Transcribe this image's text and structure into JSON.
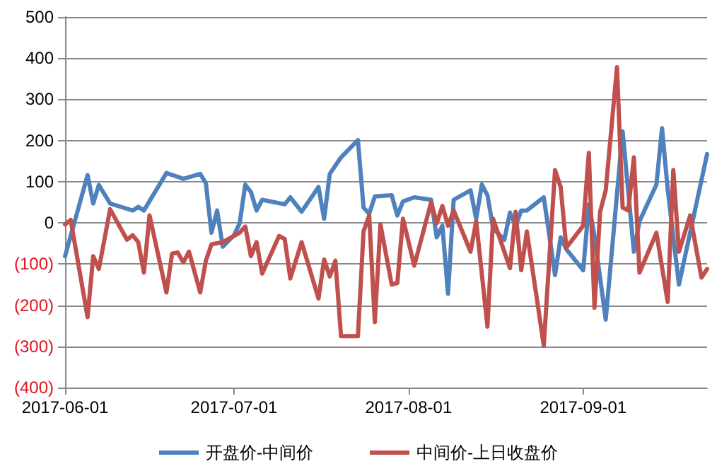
{
  "chart_data": {
    "type": "line",
    "xlim": [
      "2017-06-01",
      "2017-09-23"
    ],
    "xticks": [
      "2017-06-01",
      "2017-07-01",
      "2017-08-01",
      "2017-09-01"
    ],
    "ylim": [
      -400,
      500
    ],
    "yticks": [
      {
        "value": -400,
        "label": "(400)"
      },
      {
        "value": -300,
        "label": "(300)"
      },
      {
        "value": -200,
        "label": "(200)"
      },
      {
        "value": -100,
        "label": "(100)"
      },
      0,
      100,
      200,
      300,
      400,
      500
    ],
    "grid": "y",
    "legend": "bottom",
    "line_style": "solid",
    "marker": "none",
    "series": [
      {
        "name": "开盘价-中间价",
        "color": "#4f81bd",
        "x": [
          "2017-06-01",
          "2017-06-05",
          "2017-06-06",
          "2017-06-07",
          "2017-06-09",
          "2017-06-13",
          "2017-06-14",
          "2017-06-15",
          "2017-06-19",
          "2017-06-22",
          "2017-06-25",
          "2017-06-26",
          "2017-06-27",
          "2017-06-28",
          "2017-06-29",
          "2017-07-01",
          "2017-07-02",
          "2017-07-03",
          "2017-07-04",
          "2017-07-05",
          "2017-07-06",
          "2017-07-10",
          "2017-07-11",
          "2017-07-13",
          "2017-07-16",
          "2017-07-17",
          "2017-07-18",
          "2017-07-20",
          "2017-07-23",
          "2017-07-24",
          "2017-07-25",
          "2017-07-26",
          "2017-07-29",
          "2017-07-30",
          "2017-07-31",
          "2017-08-02",
          "2017-08-05",
          "2017-08-06",
          "2017-08-07",
          "2017-08-08",
          "2017-08-09",
          "2017-08-12",
          "2017-08-13",
          "2017-08-14",
          "2017-08-15",
          "2017-08-16",
          "2017-08-18",
          "2017-08-19",
          "2017-08-20",
          "2017-08-21",
          "2017-08-22",
          "2017-08-25",
          "2017-08-26",
          "2017-08-27",
          "2017-08-28",
          "2017-08-29",
          "2017-09-01",
          "2017-09-02",
          "2017-09-03",
          "2017-09-05",
          "2017-09-08",
          "2017-09-10",
          "2017-09-11",
          "2017-09-14",
          "2017-09-15",
          "2017-09-16",
          "2017-09-18",
          "2017-09-23"
        ],
        "values": [
          -81,
          116,
          47,
          92,
          47,
          30,
          39,
          30,
          121,
          107,
          119,
          96,
          -24,
          30,
          -58,
          -30,
          -1,
          93,
          75,
          30,
          56,
          45,
          62,
          27,
          87,
          10,
          119,
          159,
          201,
          37,
          22,
          64,
          67,
          18,
          52,
          62,
          56,
          -35,
          -7,
          -172,
          56,
          79,
          10,
          93,
          67,
          -13,
          -41,
          25,
          -7,
          30,
          30,
          62,
          -32,
          -127,
          -35,
          -64,
          -115,
          45,
          -32,
          -235,
          222,
          -70,
          4,
          93,
          230,
          82,
          -150,
          167
        ]
      },
      {
        "name": "中间价-上日收盘价",
        "color": "#c0504d",
        "x": [
          "2017-06-01",
          "2017-06-02",
          "2017-06-05",
          "2017-06-06",
          "2017-06-07",
          "2017-06-09",
          "2017-06-12",
          "2017-06-13",
          "2017-06-14",
          "2017-06-15",
          "2017-06-16",
          "2017-06-19",
          "2017-06-20",
          "2017-06-21",
          "2017-06-22",
          "2017-06-23",
          "2017-06-25",
          "2017-06-26",
          "2017-06-27",
          "2017-06-29",
          "2017-07-02",
          "2017-07-03",
          "2017-07-04",
          "2017-07-05",
          "2017-07-06",
          "2017-07-09",
          "2017-07-10",
          "2017-07-11",
          "2017-07-13",
          "2017-07-16",
          "2017-07-17",
          "2017-07-18",
          "2017-07-19",
          "2017-07-20",
          "2017-07-23",
          "2017-07-24",
          "2017-07-25",
          "2017-07-26",
          "2017-07-27",
          "2017-07-29",
          "2017-07-30",
          "2017-07-31",
          "2017-08-02",
          "2017-08-05",
          "2017-08-06",
          "2017-08-07",
          "2017-08-08",
          "2017-08-09",
          "2017-08-12",
          "2017-08-13",
          "2017-08-15",
          "2017-08-16",
          "2017-08-19",
          "2017-08-20",
          "2017-08-21",
          "2017-08-22",
          "2017-08-25",
          "2017-08-27",
          "2017-08-28",
          "2017-08-29",
          "2017-09-01",
          "2017-09-02",
          "2017-09-03",
          "2017-09-04",
          "2017-09-05",
          "2017-09-07",
          "2017-09-08",
          "2017-09-09",
          "2017-09-10",
          "2017-09-11",
          "2017-09-14",
          "2017-09-16",
          "2017-09-17",
          "2017-09-18",
          "2017-09-20",
          "2017-09-22",
          "2017-09-23"
        ],
        "values": [
          -4,
          7,
          -229,
          -81,
          -112,
          33,
          -41,
          -30,
          -47,
          -121,
          18,
          -169,
          -75,
          -72,
          -96,
          -70,
          -169,
          -92,
          -52,
          -47,
          -24,
          -9,
          -81,
          -47,
          -123,
          -32,
          -39,
          -135,
          -47,
          -184,
          -89,
          -130,
          -92,
          -275,
          -275,
          -21,
          18,
          -241,
          -4,
          -150,
          -146,
          10,
          -104,
          50,
          -1,
          41,
          -7,
          30,
          -70,
          4,
          -252,
          10,
          -110,
          27,
          -115,
          -21,
          -298,
          128,
          87,
          -60,
          -7,
          170,
          -206,
          27,
          79,
          378,
          37,
          30,
          159,
          -121,
          -24,
          -192,
          128,
          -70,
          18,
          -133,
          -112
        ]
      }
    ]
  }
}
